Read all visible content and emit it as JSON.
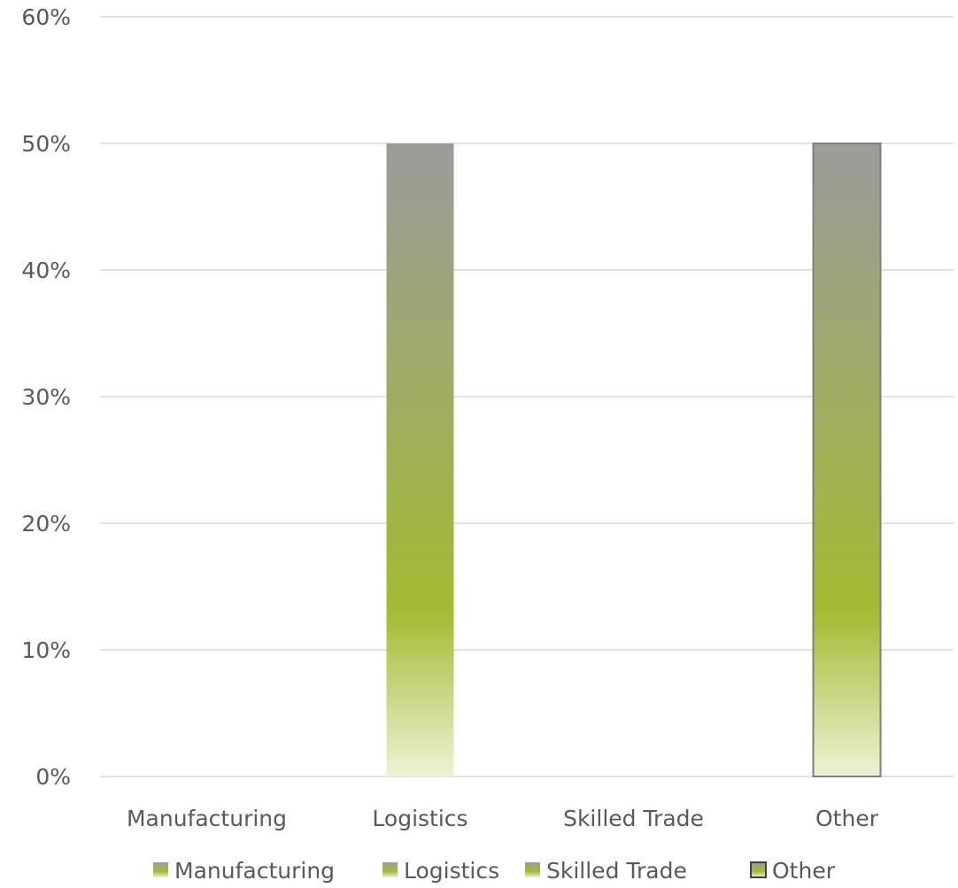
{
  "chart_data": {
    "type": "bar",
    "categories": [
      "Manufacturing",
      "Logistics",
      "Skilled Trade",
      "Other"
    ],
    "series": [
      {
        "name": "Manufacturing",
        "category": "Manufacturing",
        "value": 0
      },
      {
        "name": "Logistics",
        "category": "Logistics",
        "value": 50
      },
      {
        "name": "Skilled Trade",
        "category": "Skilled Trade",
        "value": 0
      },
      {
        "name": "Other",
        "category": "Other",
        "value": 50
      }
    ],
    "values": [
      0,
      50,
      0,
      50
    ],
    "y_ticks": [
      "0%",
      "10%",
      "20%",
      "30%",
      "40%",
      "50%",
      "60%"
    ],
    "y_tick_values": [
      0,
      10,
      20,
      30,
      40,
      50,
      60
    ],
    "ylim": [
      0,
      60
    ],
    "y_unit": "%",
    "grid": true,
    "legend": {
      "placement": "bottom",
      "entries": [
        "Manufacturing",
        "Logistics",
        "Skilled Trade",
        "Other"
      ]
    },
    "title": "",
    "xlabel": "",
    "ylabel": ""
  },
  "colors": {
    "bar_gradient_top": "#9b9b9b",
    "bar_gradient_mid": "#a2bc33",
    "bar_gradient_bottom": "#eef2d4",
    "bar_border_other": "#7f7f7f",
    "gridline": "#d9d9d9",
    "text": "#595959"
  }
}
